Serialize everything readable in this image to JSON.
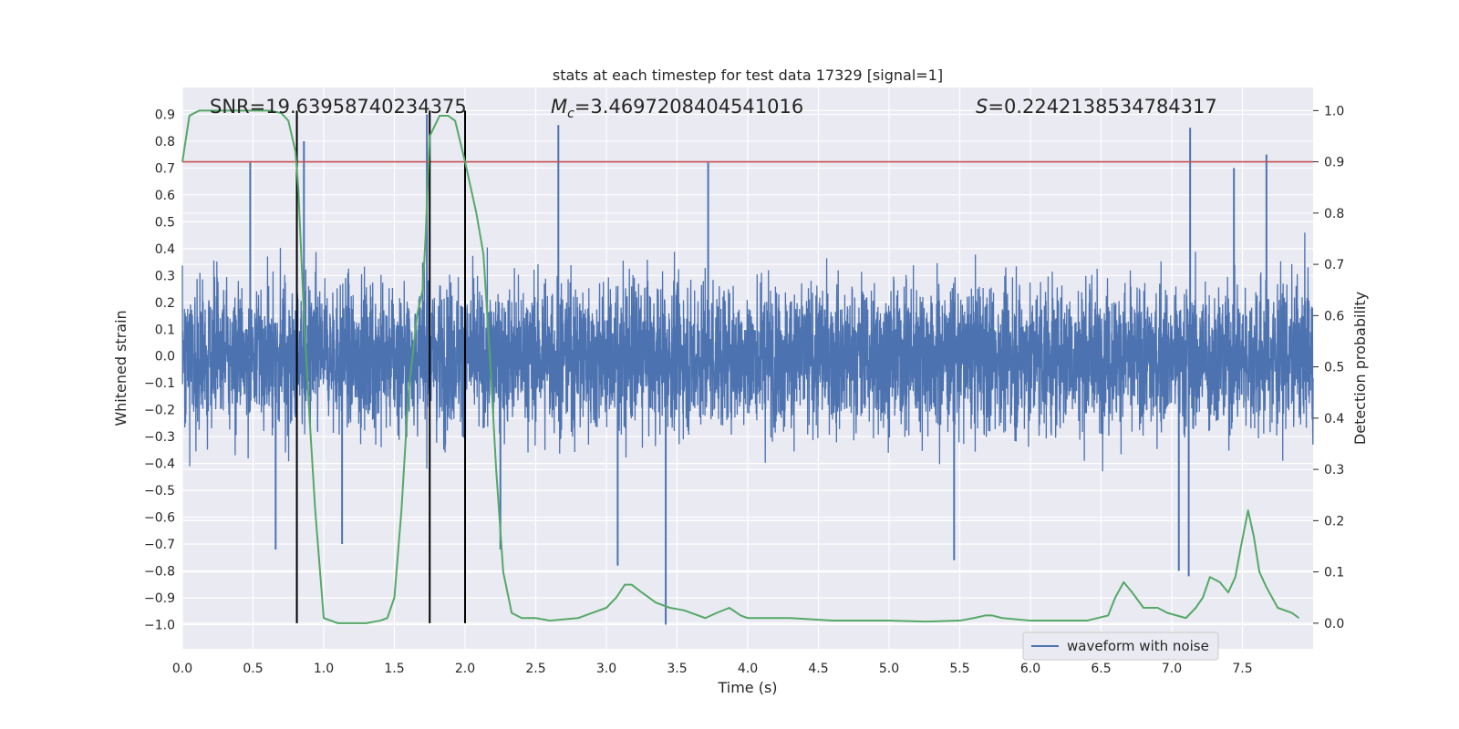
{
  "chart_data": {
    "type": "line",
    "title": "stats at each timestep for test data 17329 [signal=1]",
    "xlabel": "Time (s)",
    "ylabel": "Whitened strain",
    "y2label": "Detection probability",
    "xlim": [
      0.0,
      8.0
    ],
    "ylim": [
      -1.09,
      1.0
    ],
    "y2lim": [
      -0.05,
      1.045
    ],
    "x_ticks": [
      "0.0",
      "0.5",
      "1.0",
      "1.5",
      "2.0",
      "2.5",
      "3.0",
      "3.5",
      "4.0",
      "4.5",
      "5.0",
      "5.5",
      "6.0",
      "6.5",
      "7.0",
      "7.5"
    ],
    "y_ticks": [
      "0.9",
      "0.8",
      "0.7",
      "0.6",
      "0.5",
      "0.4",
      "0.3",
      "0.2",
      "0.1",
      "0.0",
      "−0.1",
      "−0.2",
      "−0.3",
      "−0.4",
      "−0.5",
      "−0.6",
      "−0.7",
      "−0.8",
      "−0.9",
      "−1.0"
    ],
    "y2_ticks": [
      "1.0",
      "0.9",
      "0.8",
      "0.7",
      "0.6",
      "0.5",
      "0.4",
      "0.3",
      "0.2",
      "0.1",
      "0.0"
    ],
    "grid": true,
    "legend_position": "lower-right",
    "annotations": {
      "snr": "SNR=19.63958740234375",
      "mc_prefix": "M",
      "mc_sub": "c",
      "mc_value": "=3.4697208404541016",
      "s_prefix": "S",
      "s_value": "=0.2242138534784317"
    },
    "threshold": 0.9,
    "vlines": [
      0.81,
      1.75,
      2.0
    ],
    "series": [
      {
        "name": "waveform with noise",
        "color": "#4c72b0",
        "envelope": "dense noise between about -0.5 and 0.5 whitened strain",
        "spikes": [
          {
            "x": 0.48,
            "y": 0.72
          },
          {
            "x": 0.86,
            "y": 0.8
          },
          {
            "x": 1.73,
            "y": 0.9
          },
          {
            "x": 2.66,
            "y": 0.86
          },
          {
            "x": 3.72,
            "y": 0.72
          },
          {
            "x": 7.13,
            "y": 0.85
          },
          {
            "x": 7.67,
            "y": 0.75
          },
          {
            "x": 7.44,
            "y": 0.7
          },
          {
            "x": 3.42,
            "y": -1.0
          },
          {
            "x": 3.08,
            "y": -0.78
          },
          {
            "x": 7.12,
            "y": -0.82
          },
          {
            "x": 5.46,
            "y": -0.76
          },
          {
            "x": 0.66,
            "y": -0.72
          },
          {
            "x": 2.25,
            "y": -0.72
          },
          {
            "x": 1.13,
            "y": -0.7
          },
          {
            "x": 7.05,
            "y": -0.8
          }
        ]
      },
      {
        "name": "detection probability",
        "color": "#55a868",
        "x": [
          0.0,
          0.05,
          0.12,
          0.3,
          0.5,
          0.62,
          0.7,
          0.75,
          0.8,
          0.82,
          0.86,
          0.9,
          0.94,
          1.0,
          1.1,
          1.3,
          1.4,
          1.45,
          1.5,
          1.55,
          1.6,
          1.62,
          1.66,
          1.7,
          1.72,
          1.75,
          1.82,
          1.88,
          1.93,
          2.0,
          2.08,
          2.13,
          2.18,
          2.22,
          2.27,
          2.33,
          2.4,
          2.5,
          2.6,
          2.8,
          2.9,
          3.0,
          3.07,
          3.13,
          3.18,
          3.25,
          3.35,
          3.45,
          3.55,
          3.7,
          3.78,
          3.87,
          3.95,
          4.0,
          4.15,
          4.3,
          4.6,
          5.0,
          5.25,
          5.5,
          5.6,
          5.68,
          5.73,
          5.8,
          6.0,
          6.4,
          6.55,
          6.6,
          6.66,
          6.72,
          6.8,
          6.9,
          6.97,
          7.1,
          7.17,
          7.22,
          7.27,
          7.34,
          7.4,
          7.45,
          7.49,
          7.54,
          7.58,
          7.62,
          7.67,
          7.75,
          7.85,
          7.9
        ],
        "y": [
          0.9,
          0.99,
          1.0,
          1.0,
          1.0,
          1.0,
          0.995,
          0.98,
          0.92,
          0.85,
          0.6,
          0.4,
          0.22,
          0.01,
          0.0,
          0.0,
          0.005,
          0.01,
          0.05,
          0.22,
          0.45,
          0.5,
          0.6,
          0.65,
          0.75,
          0.95,
          0.99,
          0.99,
          0.98,
          0.9,
          0.8,
          0.72,
          0.5,
          0.3,
          0.1,
          0.02,
          0.01,
          0.01,
          0.005,
          0.01,
          0.02,
          0.03,
          0.05,
          0.075,
          0.075,
          0.06,
          0.04,
          0.03,
          0.025,
          0.01,
          0.02,
          0.03,
          0.015,
          0.01,
          0.01,
          0.01,
          0.005,
          0.005,
          0.003,
          0.005,
          0.01,
          0.015,
          0.015,
          0.01,
          0.005,
          0.005,
          0.015,
          0.05,
          0.08,
          0.06,
          0.03,
          0.03,
          0.02,
          0.01,
          0.03,
          0.05,
          0.09,
          0.08,
          0.06,
          0.09,
          0.15,
          0.22,
          0.17,
          0.1,
          0.07,
          0.03,
          0.02,
          0.01
        ]
      }
    ]
  }
}
